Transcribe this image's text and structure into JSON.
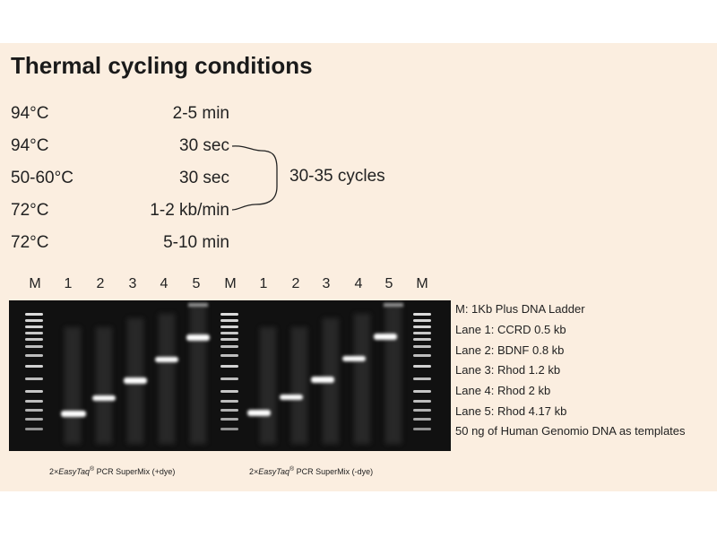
{
  "title": "Thermal cycling conditions",
  "conditions": [
    {
      "temp": "94°C",
      "time": "2-5 min"
    },
    {
      "temp": "94°C",
      "time": "30 sec"
    },
    {
      "temp": "50-60°C",
      "time": "30 sec"
    },
    {
      "temp": "72°C",
      "time": "1-2 kb/min"
    },
    {
      "temp": "72°C",
      "time": "5-10 min"
    }
  ],
  "cycles_label": "30-35 cycles",
  "lane_labels": [
    "M",
    "1",
    "2",
    "3",
    "4",
    "5",
    "M",
    "1",
    "2",
    "3",
    "4",
    "5",
    "M"
  ],
  "legend": [
    "M: 1Kb Plus DNA Ladder",
    "Lane 1: CCRD 0.5 kb",
    "Lane 2: BDNF 0.8 kb",
    "Lane 3: Rhod 1.2 kb",
    "Lane 4: Rhod 2 kb",
    "Lane 5: Rhod 4.17 kb",
    "50 ng of Human Genomio DNA as templates"
  ],
  "captions": [
    {
      "prefix": "2×",
      "brand": "EasyTaq",
      "mark": "®",
      "suffix": " PCR SuperMix (+dye)"
    },
    {
      "prefix": "2×",
      "brand": "EasyTaq",
      "mark": "®",
      "suffix": " PCR SuperMix (-dye)"
    }
  ]
}
